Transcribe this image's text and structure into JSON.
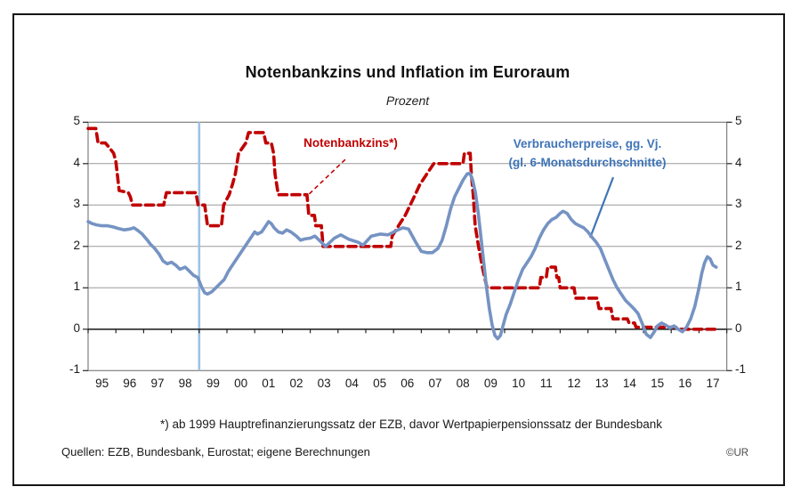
{
  "chart_data": {
    "type": "line",
    "title": "Notenbankzins und Inflation im Euroraum",
    "subtitle": "Prozent",
    "xlabel": "",
    "ylabel": "Prozent",
    "ylim": [
      -1,
      5
    ],
    "y_ticks": [
      5,
      4,
      3,
      2,
      1,
      0,
      -1
    ],
    "x_categories": [
      "95",
      "96",
      "97",
      "98",
      "99",
      "00",
      "01",
      "02",
      "03",
      "04",
      "05",
      "06",
      "07",
      "08",
      "09",
      "10",
      "11",
      "12",
      "13",
      "14",
      "15",
      "16",
      "17"
    ],
    "x_range_years": [
      1995,
      2018
    ],
    "grid": "horizontal",
    "event_line_year": 1999,
    "event_line_color": "#9DC3E6",
    "series": [
      {
        "name": "Notenbankzins*)",
        "color": "#C00000",
        "style": "dashed",
        "points": [
          [
            1995.0,
            4.85
          ],
          [
            1995.28,
            4.85
          ],
          [
            1995.36,
            4.5
          ],
          [
            1995.62,
            4.5
          ],
          [
            1995.75,
            4.4
          ],
          [
            1995.92,
            4.25
          ],
          [
            1996.0,
            4.05
          ],
          [
            1996.12,
            3.35
          ],
          [
            1996.45,
            3.3
          ],
          [
            1996.52,
            3.2
          ],
          [
            1996.6,
            3.0
          ],
          [
            1997.72,
            3.0
          ],
          [
            1997.82,
            3.3
          ],
          [
            1998.88,
            3.3
          ],
          [
            1998.96,
            3.0
          ],
          [
            1999.2,
            3.0
          ],
          [
            1999.3,
            2.5
          ],
          [
            1999.8,
            2.5
          ],
          [
            1999.88,
            3.0
          ],
          [
            2000.08,
            3.25
          ],
          [
            2000.2,
            3.5
          ],
          [
            2000.3,
            3.75
          ],
          [
            2000.42,
            4.25
          ],
          [
            2000.68,
            4.5
          ],
          [
            2000.78,
            4.75
          ],
          [
            2001.32,
            4.75
          ],
          [
            2001.4,
            4.5
          ],
          [
            2001.6,
            4.5
          ],
          [
            2001.68,
            4.25
          ],
          [
            2001.73,
            3.75
          ],
          [
            2001.85,
            3.25
          ],
          [
            2002.88,
            3.25
          ],
          [
            2002.95,
            2.75
          ],
          [
            2003.15,
            2.75
          ],
          [
            2003.2,
            2.5
          ],
          [
            2003.4,
            2.5
          ],
          [
            2003.46,
            2.0
          ],
          [
            2005.9,
            2.0
          ],
          [
            2005.95,
            2.25
          ],
          [
            2006.18,
            2.5
          ],
          [
            2006.42,
            2.75
          ],
          [
            2006.6,
            3.0
          ],
          [
            2006.78,
            3.25
          ],
          [
            2006.95,
            3.5
          ],
          [
            2007.2,
            3.75
          ],
          [
            2007.45,
            4.0
          ],
          [
            2008.5,
            4.0
          ],
          [
            2008.55,
            4.25
          ],
          [
            2008.76,
            4.25
          ],
          [
            2008.8,
            3.75
          ],
          [
            2008.87,
            3.25
          ],
          [
            2008.94,
            2.5
          ],
          [
            2009.06,
            2.0
          ],
          [
            2009.2,
            1.5
          ],
          [
            2009.28,
            1.25
          ],
          [
            2009.37,
            1.0
          ],
          [
            2011.25,
            1.0
          ],
          [
            2011.3,
            1.25
          ],
          [
            2011.5,
            1.25
          ],
          [
            2011.55,
            1.5
          ],
          [
            2011.83,
            1.5
          ],
          [
            2011.88,
            1.25
          ],
          [
            2011.95,
            1.25
          ],
          [
            2012.0,
            1.0
          ],
          [
            2012.5,
            1.0
          ],
          [
            2012.56,
            0.75
          ],
          [
            2013.33,
            0.75
          ],
          [
            2013.4,
            0.5
          ],
          [
            2013.83,
            0.5
          ],
          [
            2013.9,
            0.25
          ],
          [
            2014.42,
            0.25
          ],
          [
            2014.48,
            0.15
          ],
          [
            2014.68,
            0.15
          ],
          [
            2014.73,
            0.05
          ],
          [
            2016.17,
            0.05
          ],
          [
            2016.22,
            0.0
          ],
          [
            2017.66,
            0.0
          ]
        ]
      },
      {
        "name": "Verbraucherpreise, gg. Vj. (gl. 6-Monatsdurchschnitte)",
        "color": "#7593C3",
        "style": "solid",
        "points": [
          [
            1995.0,
            2.6
          ],
          [
            1995.15,
            2.55
          ],
          [
            1995.3,
            2.52
          ],
          [
            1995.5,
            2.5
          ],
          [
            1995.7,
            2.5
          ],
          [
            1995.9,
            2.47
          ],
          [
            1996.1,
            2.43
          ],
          [
            1996.3,
            2.4
          ],
          [
            1996.5,
            2.42
          ],
          [
            1996.65,
            2.45
          ],
          [
            1996.8,
            2.38
          ],
          [
            1996.95,
            2.3
          ],
          [
            1997.1,
            2.18
          ],
          [
            1997.25,
            2.05
          ],
          [
            1997.4,
            1.95
          ],
          [
            1997.55,
            1.82
          ],
          [
            1997.7,
            1.65
          ],
          [
            1997.85,
            1.58
          ],
          [
            1998.0,
            1.62
          ],
          [
            1998.15,
            1.55
          ],
          [
            1998.3,
            1.45
          ],
          [
            1998.5,
            1.5
          ],
          [
            1998.65,
            1.4
          ],
          [
            1998.8,
            1.3
          ],
          [
            1998.95,
            1.25
          ],
          [
            1999.1,
            1.0
          ],
          [
            1999.2,
            0.88
          ],
          [
            1999.3,
            0.85
          ],
          [
            1999.45,
            0.9
          ],
          [
            1999.6,
            1.0
          ],
          [
            1999.75,
            1.1
          ],
          [
            1999.9,
            1.2
          ],
          [
            2000.05,
            1.4
          ],
          [
            2000.25,
            1.6
          ],
          [
            2000.45,
            1.8
          ],
          [
            2000.65,
            2.0
          ],
          [
            2000.85,
            2.2
          ],
          [
            2001.0,
            2.35
          ],
          [
            2001.1,
            2.3
          ],
          [
            2001.25,
            2.35
          ],
          [
            2001.4,
            2.5
          ],
          [
            2001.5,
            2.6
          ],
          [
            2001.6,
            2.55
          ],
          [
            2001.7,
            2.45
          ],
          [
            2001.85,
            2.35
          ],
          [
            2002.0,
            2.32
          ],
          [
            2002.15,
            2.4
          ],
          [
            2002.3,
            2.35
          ],
          [
            2002.5,
            2.25
          ],
          [
            2002.65,
            2.15
          ],
          [
            2002.8,
            2.18
          ],
          [
            2003.0,
            2.2
          ],
          [
            2003.17,
            2.25
          ],
          [
            2003.4,
            2.1
          ],
          [
            2003.55,
            2.0
          ],
          [
            2003.87,
            2.2
          ],
          [
            2004.1,
            2.28
          ],
          [
            2004.4,
            2.17
          ],
          [
            2004.73,
            2.1
          ],
          [
            2004.9,
            2.03
          ],
          [
            2005.2,
            2.25
          ],
          [
            2005.53,
            2.3
          ],
          [
            2005.8,
            2.28
          ],
          [
            2006.1,
            2.38
          ],
          [
            2006.33,
            2.45
          ],
          [
            2006.54,
            2.42
          ],
          [
            2006.8,
            2.1
          ],
          [
            2007.0,
            1.88
          ],
          [
            2007.2,
            1.85
          ],
          [
            2007.4,
            1.85
          ],
          [
            2007.6,
            1.95
          ],
          [
            2007.75,
            2.15
          ],
          [
            2007.9,
            2.5
          ],
          [
            2008.05,
            2.9
          ],
          [
            2008.2,
            3.2
          ],
          [
            2008.35,
            3.4
          ],
          [
            2008.5,
            3.6
          ],
          [
            2008.65,
            3.75
          ],
          [
            2008.75,
            3.77
          ],
          [
            2008.85,
            3.6
          ],
          [
            2008.95,
            3.3
          ],
          [
            2009.05,
            2.8
          ],
          [
            2009.15,
            2.2
          ],
          [
            2009.25,
            1.6
          ],
          [
            2009.35,
            1.0
          ],
          [
            2009.45,
            0.5
          ],
          [
            2009.55,
            0.1
          ],
          [
            2009.65,
            -0.15
          ],
          [
            2009.75,
            -0.23
          ],
          [
            2009.85,
            -0.15
          ],
          [
            2009.95,
            0.1
          ],
          [
            2010.05,
            0.35
          ],
          [
            2010.2,
            0.6
          ],
          [
            2010.35,
            0.9
          ],
          [
            2010.5,
            1.2
          ],
          [
            2010.65,
            1.45
          ],
          [
            2010.8,
            1.6
          ],
          [
            2010.95,
            1.75
          ],
          [
            2011.1,
            1.95
          ],
          [
            2011.25,
            2.2
          ],
          [
            2011.4,
            2.4
          ],
          [
            2011.55,
            2.55
          ],
          [
            2011.7,
            2.65
          ],
          [
            2011.85,
            2.7
          ],
          [
            2012.0,
            2.8
          ],
          [
            2012.1,
            2.85
          ],
          [
            2012.25,
            2.8
          ],
          [
            2012.4,
            2.65
          ],
          [
            2012.55,
            2.55
          ],
          [
            2012.7,
            2.5
          ],
          [
            2012.85,
            2.45
          ],
          [
            2013.0,
            2.35
          ],
          [
            2013.15,
            2.22
          ],
          [
            2013.3,
            2.1
          ],
          [
            2013.45,
            1.95
          ],
          [
            2013.6,
            1.7
          ],
          [
            2013.75,
            1.45
          ],
          [
            2013.9,
            1.2
          ],
          [
            2014.05,
            1.0
          ],
          [
            2014.2,
            0.85
          ],
          [
            2014.35,
            0.7
          ],
          [
            2014.5,
            0.6
          ],
          [
            2014.65,
            0.5
          ],
          [
            2014.8,
            0.38
          ],
          [
            2014.95,
            0.15
          ],
          [
            2015.1,
            -0.12
          ],
          [
            2015.25,
            -0.2
          ],
          [
            2015.4,
            -0.05
          ],
          [
            2015.5,
            0.08
          ],
          [
            2015.65,
            0.15
          ],
          [
            2015.8,
            0.1
          ],
          [
            2015.95,
            0.03
          ],
          [
            2016.1,
            0.08
          ],
          [
            2016.25,
            0.0
          ],
          [
            2016.4,
            -0.06
          ],
          [
            2016.55,
            0.05
          ],
          [
            2016.7,
            0.25
          ],
          [
            2016.85,
            0.55
          ],
          [
            2017.0,
            1.0
          ],
          [
            2017.1,
            1.35
          ],
          [
            2017.2,
            1.6
          ],
          [
            2017.3,
            1.75
          ],
          [
            2017.4,
            1.7
          ],
          [
            2017.5,
            1.55
          ],
          [
            2017.62,
            1.5
          ]
        ]
      }
    ],
    "annotations": [
      {
        "label_for": "Notenbankzins",
        "color": "#C00000",
        "style": "dashed",
        "from": [
          2004.26,
          4.1
        ],
        "to": [
          2002.92,
          3.24
        ]
      },
      {
        "label_for": "Verbraucherpreise",
        "color": "#3F74B8",
        "style": "solid",
        "from": [
          2013.91,
          3.67
        ],
        "to": [
          2013.08,
          2.21
        ]
      }
    ],
    "legend_position": "inside-top"
  },
  "legend": {
    "red": "Notenbankzins*)",
    "blue_line1": "Verbraucherpreise, gg. Vj.",
    "blue_line2": "(gl. 6-Monatsdurchschnitte)"
  },
  "footer": {
    "footnote": "*) ab 1999 Hauptrefinanzierungssatz der EZB, davor Wertpapierpensionssatz der Bundesbank",
    "source": "Quellen: EZB, Bundesbank, Eurostat; eigene Berechnungen",
    "copyright": "©UR"
  },
  "colors": {
    "red_series": "#C00000",
    "blue_series": "#7593C3",
    "blue_label": "#3F74B8",
    "event_line": "#9DC3E6",
    "grid": "#9A9A9A",
    "frame": "#808080",
    "zero_line": "#262626"
  }
}
